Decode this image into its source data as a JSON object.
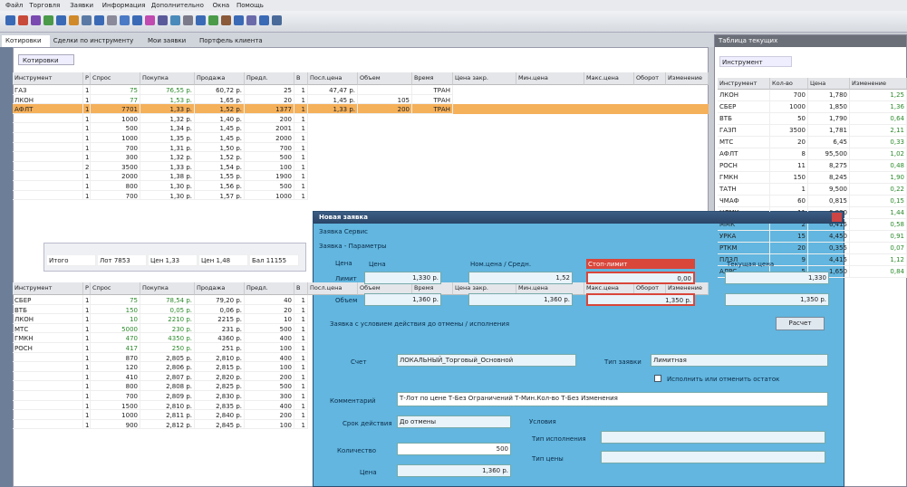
{
  "menu": [
    "Файл",
    "Торговля",
    "Заявки",
    "Информация",
    "Дополнительно",
    "Окна",
    "Помощь"
  ],
  "tabs": [
    "Котировки",
    "Сделки по инструменту",
    "Мои заявки",
    "Портфель клиента"
  ],
  "main": {
    "tab": "Котировки",
    "headers": [
      "Инструмент",
      "Р",
      "Спрос",
      "Покупка",
      "Продажа",
      "Предл.",
      "В",
      "Посл.цена",
      "Объем",
      "Время",
      "Цена закр.",
      "Мин.цена",
      "Макс.цена",
      "Оборот",
      "Изменение"
    ],
    "rows": [
      [
        "ГАЗ",
        "1",
        "75",
        "76,55 р.",
        "60,72 р.",
        "25",
        "1",
        "47,47 р.",
        "",
        "ТРАН"
      ],
      [
        "ЛКОН",
        "1",
        "77",
        "1,53 р.",
        "1,65 р.",
        "20",
        "1",
        "1,45 р.",
        "105",
        "ТРАН"
      ],
      [
        "АФЛТ",
        "1",
        "7701",
        "1,33 р.",
        "1,52 р.",
        "1377",
        "1",
        "1,33 р.",
        "200",
        "ТРАН"
      ]
    ],
    "details": [
      [
        "",
        "1",
        "1000",
        "1,32 р.",
        "1,40 р.",
        "200",
        "1"
      ],
      [
        "",
        "1",
        "500",
        "1,34 р.",
        "1,45 р.",
        "2001",
        "1"
      ],
      [
        "",
        "1",
        "1000",
        "1,35 р.",
        "1,45 р.",
        "2000",
        "1"
      ],
      [
        "",
        "1",
        "700",
        "1,31 р.",
        "1,50 р.",
        "700",
        "1"
      ],
      [
        "",
        "1",
        "300",
        "1,32 р.",
        "1,52 р.",
        "500",
        "1"
      ],
      [
        "",
        "2",
        "3500",
        "1,33 р.",
        "1,54 р.",
        "100",
        "1"
      ],
      [
        "",
        "1",
        "2000",
        "1,38 р.",
        "1,55 р.",
        "1900",
        "1"
      ],
      [
        "",
        "1",
        "800",
        "1,30 р.",
        "1,56 р.",
        "500",
        "1"
      ],
      [
        "",
        "1",
        "700",
        "1,30 р.",
        "1,57 р.",
        "1000",
        "1"
      ]
    ],
    "summary": [
      "Итого",
      "Лот 7853",
      "Цен 1,33",
      "Цен 1,48",
      "Бал 11155"
    ]
  },
  "lower": {
    "rows": [
      [
        "СБЕР",
        "1",
        "75",
        "78,54 р.",
        "79,20 р.",
        "40",
        "1"
      ],
      [
        "ВТБ",
        "1",
        "150",
        "0,05 р.",
        "0,06 р.",
        "20",
        "1"
      ],
      [
        "ЛКОН",
        "1",
        "10",
        "2210 р.",
        "2215 р.",
        "10",
        "1"
      ],
      [
        "МТС",
        "1",
        "5000",
        "230 р.",
        "231 р.",
        "500",
        "1"
      ],
      [
        "ГМКН",
        "1",
        "470",
        "4350 р.",
        "4360 р.",
        "400",
        "1"
      ],
      [
        "РОСН",
        "1",
        "417",
        "250 р.",
        "251 р.",
        "100",
        "1"
      ]
    ],
    "details": [
      [
        "",
        "1",
        "870",
        "2,805 р.",
        "2,810 р.",
        "400",
        "1"
      ],
      [
        "",
        "1",
        "120",
        "2,806 р.",
        "2,815 р.",
        "100",
        "1"
      ],
      [
        "",
        "1",
        "410",
        "2,807 р.",
        "2,820 р.",
        "200",
        "1"
      ],
      [
        "",
        "1",
        "800",
        "2,808 р.",
        "2,825 р.",
        "500",
        "1"
      ],
      [
        "",
        "1",
        "700",
        "2,809 р.",
        "2,830 р.",
        "300",
        "1"
      ],
      [
        "",
        "1",
        "1500",
        "2,810 р.",
        "2,835 р.",
        "400",
        "1"
      ],
      [
        "",
        "1",
        "1000",
        "2,811 р.",
        "2,840 р.",
        "200",
        "1"
      ],
      [
        "",
        "1",
        "900",
        "2,812 р.",
        "2,845 р.",
        "100",
        "1"
      ]
    ]
  },
  "right": {
    "title": "Таблица текущих",
    "subtitle": "Инструмент",
    "headers": [
      "Инструмент",
      "Кол-во",
      "Цена",
      "Изменение"
    ],
    "rows": [
      [
        "ЛКОН",
        "700",
        "1,780",
        "1,25"
      ],
      [
        "СБЕР",
        "1000",
        "1,850",
        "1,36"
      ],
      [
        "ВТБ",
        "50",
        "1,790",
        "0,64"
      ],
      [
        "ГАЗП",
        "3500",
        "1,781",
        "2,11"
      ],
      [
        "МТС",
        "20",
        "6,45",
        "0,33"
      ],
      [
        "АФЛТ",
        "8",
        "95,500",
        "1,02"
      ],
      [
        "РОСН",
        "11",
        "8,275",
        "0,48"
      ],
      [
        "ГМКН",
        "150",
        "8,245",
        "1,90"
      ],
      [
        "ТАТН",
        "1",
        "9,500",
        "0,22"
      ],
      [
        "ЧМАФ",
        "60",
        "0,815",
        "0,15"
      ],
      [
        "НЛМК",
        "11",
        "6,830",
        "1,44"
      ],
      [
        "ММК",
        "2",
        "6,415",
        "0,58"
      ],
      [
        "УРКА",
        "15",
        "4,450",
        "0,91"
      ],
      [
        "РТКМ",
        "20",
        "0,355",
        "0,07"
      ],
      [
        "ПЛЗЛ",
        "9",
        "4,415",
        "1,12"
      ],
      [
        "АЛРС",
        "5",
        "1,650",
        "0,84"
      ]
    ]
  },
  "dialog": {
    "title": "Новая заявка",
    "menu": "Заявка  Сервис",
    "group": "Заявка - Параметры",
    "price_label": "Цена",
    "row1": "Лимит",
    "row2": "Объем",
    "cols": [
      "Цена",
      "Ном.цена / Средн.",
      "Стоп-лимит",
      "Текущая цена"
    ],
    "r1": [
      "1,330 р.",
      "1,52",
      "0,00",
      "1,330"
    ],
    "r2": [
      "1,360 р.",
      "1,360 р.",
      "1,350 р.",
      "1,350 р."
    ],
    "note": "Заявка с условием действия до отмены / исполнения",
    "button": "Расчет",
    "account_label": "Счет",
    "account": "ЛОКАЛЬНЫЙ_Торговый_Основной",
    "type_label": "Тип заявки",
    "type": "Лимитная",
    "check": "Исполнить или отменить остаток",
    "comment_label": "Комментарий",
    "comment": "Т-Лот по цене  Т-Без Ограничений  Т-Мин.Кол-во  Т-Без Изменения",
    "term_label": "Срок действия",
    "term": "До отмены",
    "qty_label": "Количество",
    "qty": "500",
    "cond_label": "Условия",
    "cond1": "Тип исполнения",
    "cond2": "Тип цены",
    "sum_label": "Цена",
    "sum": "1,360 р."
  }
}
